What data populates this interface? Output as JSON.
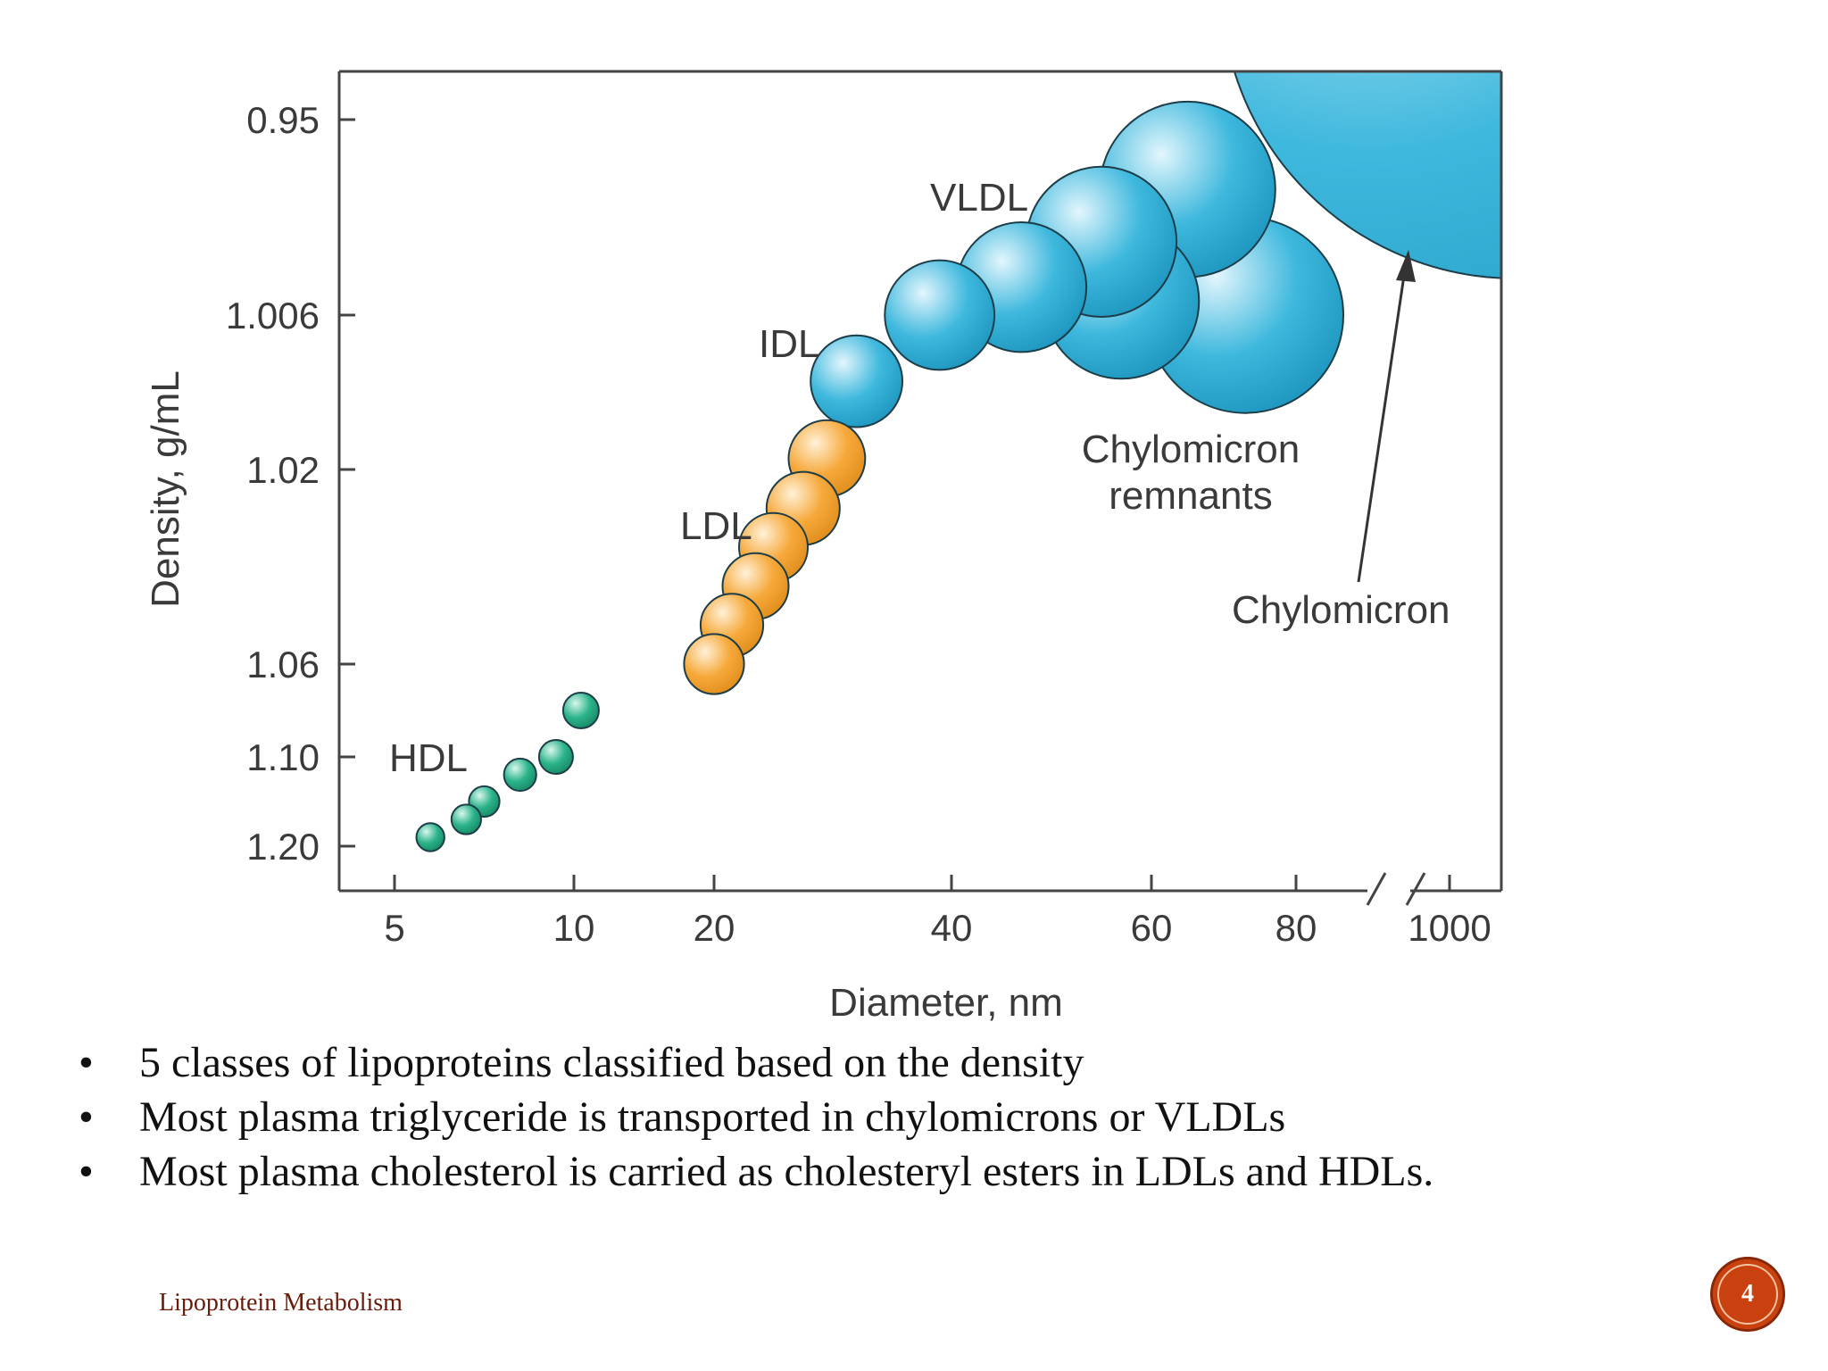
{
  "chart_data": {
    "type": "scatter",
    "title": "",
    "xlabel": "Diameter, nm",
    "ylabel": "Density, g/mL",
    "x_ticks": [
      "5",
      "10",
      "20",
      "40",
      "60",
      "80",
      "1000"
    ],
    "y_ticks": [
      "0.95",
      "1.006",
      "1.02",
      "1.06",
      "1.10",
      "1.20"
    ],
    "axis_break": "between 80 and 1000 on x-axis",
    "grid": false,
    "series": [
      {
        "name": "HDL",
        "color": "#2bb38a",
        "points": [
          {
            "x": 6,
            "y": 1.19
          },
          {
            "x": 7,
            "y": 1.17
          },
          {
            "x": 7.5,
            "y": 1.15
          },
          {
            "x": 8.5,
            "y": 1.12
          },
          {
            "x": 9.5,
            "y": 1.1
          },
          {
            "x": 10.5,
            "y": 1.08
          }
        ]
      },
      {
        "name": "LDL",
        "color": "#f6a93b",
        "points": [
          {
            "x": 20,
            "y": 1.06
          },
          {
            "x": 21.5,
            "y": 1.052
          },
          {
            "x": 23.5,
            "y": 1.044
          },
          {
            "x": 25,
            "y": 1.036
          },
          {
            "x": 27.5,
            "y": 1.028
          },
          {
            "x": 29.5,
            "y": 1.019
          }
        ]
      },
      {
        "name": "IDL",
        "color": "#3eb8dd",
        "points": [
          {
            "x": 32,
            "y": 1.012
          },
          {
            "x": 39,
            "y": 1.006
          }
        ]
      },
      {
        "name": "VLDL",
        "color": "#3eb8dd",
        "points": [
          {
            "x": 47,
            "y": 0.998
          },
          {
            "x": 55,
            "y": 0.985
          },
          {
            "x": 65,
            "y": 0.97
          }
        ]
      },
      {
        "name": "Chylomicron remnants",
        "color": "#3eb8dd",
        "points": [
          {
            "x": 57,
            "y": 1.002
          },
          {
            "x": 73,
            "y": 1.006
          }
        ]
      },
      {
        "name": "Chylomicron",
        "color": "#3eb8dd",
        "points": [
          {
            "x": 1000,
            "y": 0.93
          }
        ]
      }
    ],
    "annotations": [
      {
        "id": "hdl",
        "text": "HDL"
      },
      {
        "id": "ldl",
        "text": "LDL"
      },
      {
        "id": "idl",
        "text": "IDL"
      },
      {
        "id": "vldl",
        "text": "VLDL"
      },
      {
        "id": "remnants-1",
        "text": "Chylomicron"
      },
      {
        "id": "remnants-2",
        "text": "remnants"
      },
      {
        "id": "chylomicron",
        "text": "Chylomicron"
      }
    ]
  },
  "bullets": [
    "5 classes of lipoproteins classified based on the density",
    "Most plasma triglyceride is transported in chylomicrons or VLDLs",
    "Most plasma cholesterol is carried as cholesteryl esters in LDLs and HDLs."
  ],
  "bullet_symbol": "•",
  "footer": "Lipoprotein Metabolism",
  "page_number": "4"
}
